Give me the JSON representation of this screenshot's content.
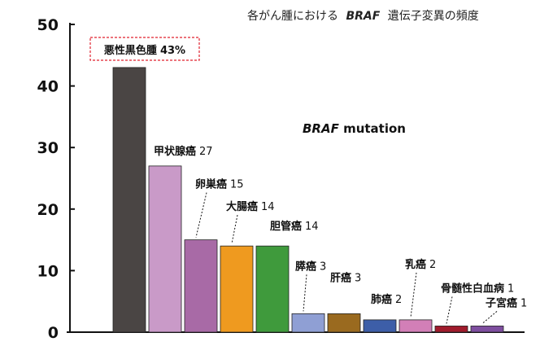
{
  "chart_data": {
    "type": "bar",
    "title_prefix": "各がん腫における",
    "title_gene": "BRAF",
    "title_suffix": "遺伝子変異の頻度",
    "inner_title_gene": "BRAF",
    "inner_title_suffix": " mutation",
    "ylim": [
      0,
      50
    ],
    "yticks": [
      0,
      10,
      20,
      30,
      40,
      50
    ],
    "grid": false,
    "categories": [
      "悪性黒色腫",
      "甲状腺癌",
      "卵巣癌",
      "大腸癌",
      "胆管癌",
      "膵癌",
      "肝癌",
      "肺癌",
      "乳癌",
      "骨髄性白血病",
      "子宮癌"
    ],
    "values": [
      43,
      27,
      15,
      14,
      14,
      3,
      3,
      2,
      2,
      1,
      1
    ],
    "value_labels": [
      "43%",
      "27",
      "15",
      "14",
      "14",
      "3",
      "3",
      "2",
      "2",
      "1",
      "1"
    ],
    "colors": [
      "#4a4544",
      "#c99ac8",
      "#a86aa6",
      "#ef9a1f",
      "#3f9a3c",
      "#8f9fd4",
      "#9a6a1f",
      "#3d5ea8",
      "#d27fb7",
      "#a01b2c",
      "#7e4e9f"
    ]
  }
}
